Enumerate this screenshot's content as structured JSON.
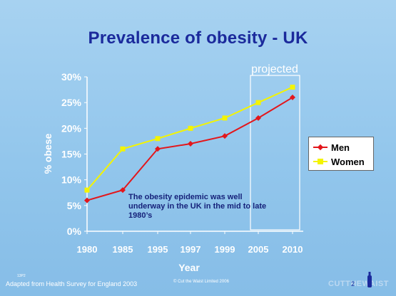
{
  "slide": {
    "title": "Prevalence of obesity - UK",
    "annotation": "The obesity epidemic was well underway in the UK in the mid to late 1980’s",
    "projected_label": "projected",
    "source": "Adapted from Health Survey for England 2003",
    "mini_label": "13P2",
    "copyright": "© Cut the Waist Limited 2006",
    "page_number": "2",
    "logo_text": "CUTTHEWAIST"
  },
  "colors": {
    "men": "#e3161b",
    "women": "#f4f400",
    "title": "#1b2a9c",
    "annotation": "#16227a"
  },
  "chart_data": {
    "type": "line",
    "title": "Prevalence of obesity - UK",
    "xlabel": "Year",
    "ylabel": "% obese",
    "categories": [
      "1980",
      "1985",
      "1995",
      "1997",
      "1999",
      "2005",
      "2010"
    ],
    "ylim": [
      0,
      30
    ],
    "yticks": [
      "0%",
      "5%",
      "10%",
      "15%",
      "20%",
      "25%",
      "30%"
    ],
    "legend_position": "right",
    "series": [
      {
        "name": "Men",
        "values": [
          6,
          8,
          16,
          17,
          18.5,
          22,
          26
        ],
        "marker": "diamond"
      },
      {
        "name": "Women",
        "values": [
          8,
          16,
          18,
          20,
          22,
          25,
          28
        ],
        "marker": "square"
      }
    ],
    "projected_region": [
      "2005",
      "2010"
    ]
  }
}
